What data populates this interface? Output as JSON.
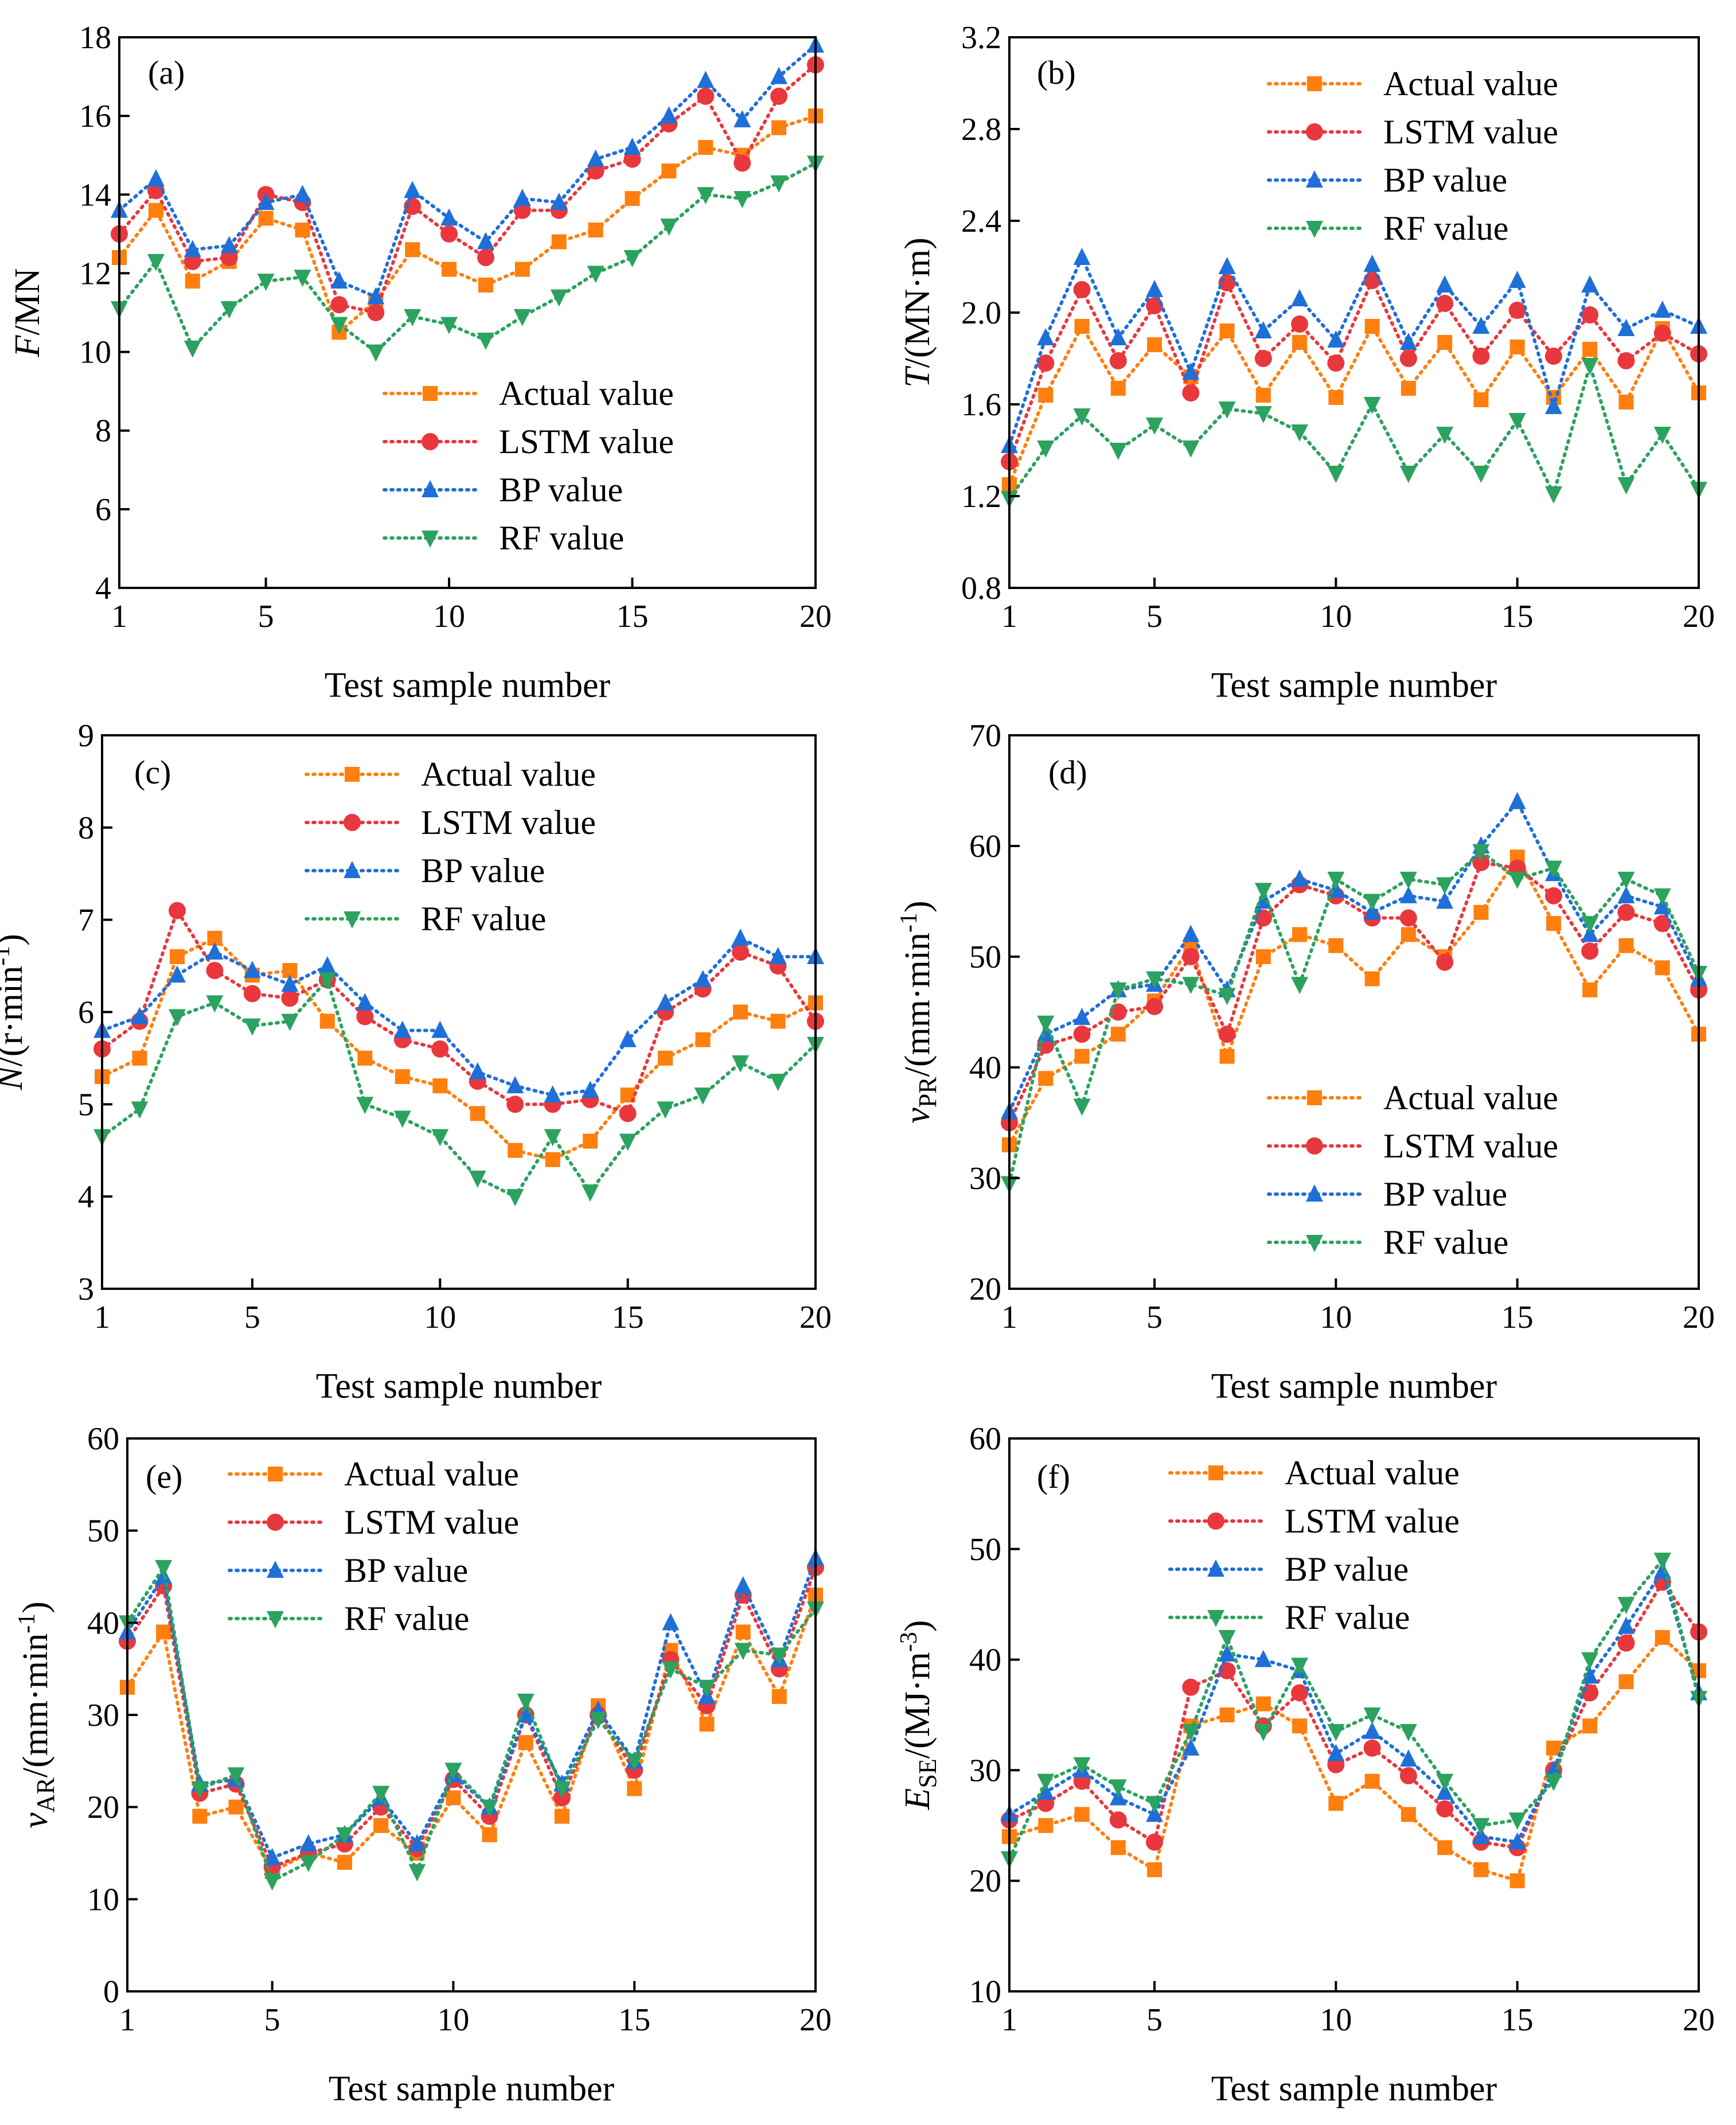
{
  "colors": {
    "Actual value": "#ff7f0e",
    "LSTM value": "#e8383d",
    "BP value": "#1f6fd8",
    "RF value": "#2ca25f"
  },
  "chart_data": [
    {
      "type": "line",
      "panel": "(a)",
      "xlabel": "Test sample number",
      "ylabel_italic": "F",
      "ylabel_unit": "/MN",
      "xlim": [
        1,
        20
      ],
      "ylim": [
        4,
        18
      ],
      "xticks": [
        1,
        5,
        10,
        15,
        20
      ],
      "yticks": [
        4,
        6,
        8,
        10,
        12,
        14,
        16,
        18
      ],
      "legend": "bottom-right",
      "x": [
        1,
        2,
        3,
        4,
        5,
        6,
        7,
        8,
        9,
        10,
        11,
        12,
        13,
        14,
        15,
        16,
        17,
        18,
        19,
        20
      ],
      "series": [
        {
          "name": "Actual value",
          "marker": "square",
          "values": [
            12.4,
            13.6,
            11.8,
            12.3,
            13.4,
            13.1,
            10.5,
            11.3,
            12.6,
            12.1,
            11.7,
            12.1,
            12.8,
            13.1,
            13.9,
            14.6,
            15.2,
            15.0,
            15.7,
            16.0
          ]
        },
        {
          "name": "LSTM value",
          "marker": "circle",
          "values": [
            13.0,
            14.1,
            12.3,
            12.4,
            14.0,
            13.8,
            11.2,
            11.0,
            13.7,
            13.0,
            12.4,
            13.6,
            13.6,
            14.6,
            14.9,
            15.8,
            16.5,
            14.8,
            16.5,
            17.3
          ]
        },
        {
          "name": "BP value",
          "marker": "triangle-up",
          "values": [
            13.6,
            14.4,
            12.6,
            12.7,
            13.8,
            14.0,
            11.8,
            11.4,
            14.1,
            13.4,
            12.8,
            13.9,
            13.8,
            14.9,
            15.2,
            16.0,
            16.9,
            15.9,
            17.0,
            17.8
          ]
        },
        {
          "name": "RF value",
          "marker": "triangle-down",
          "values": [
            11.1,
            12.3,
            10.1,
            11.1,
            11.8,
            11.9,
            10.7,
            10.0,
            10.9,
            10.7,
            10.3,
            10.9,
            11.4,
            12.0,
            12.4,
            13.2,
            14.0,
            13.9,
            14.3,
            14.8
          ]
        }
      ]
    },
    {
      "type": "line",
      "panel": "(b)",
      "xlabel": "Test sample number",
      "ylabel_italic": "T",
      "ylabel_unit": "/(MN·m)",
      "xlim": [
        1,
        20
      ],
      "ylim": [
        0.8,
        3.2
      ],
      "xticks": [
        1,
        5,
        10,
        15,
        20
      ],
      "yticks": [
        0.8,
        1.2,
        1.6,
        2.0,
        2.4,
        2.8,
        3.2
      ],
      "ytick_labels": [
        "0.8",
        "1.2",
        "1.6",
        "2.0",
        "2.4",
        "2.8",
        "3.2"
      ],
      "legend": "top-right",
      "x": [
        1,
        2,
        3,
        4,
        5,
        6,
        7,
        8,
        9,
        10,
        11,
        12,
        13,
        14,
        15,
        16,
        17,
        18,
        19,
        20
      ],
      "series": [
        {
          "name": "Actual value",
          "marker": "square",
          "values": [
            1.25,
            1.64,
            1.94,
            1.67,
            1.86,
            1.72,
            1.92,
            1.64,
            1.87,
            1.63,
            1.94,
            1.67,
            1.87,
            1.62,
            1.85,
            1.63,
            1.84,
            1.61,
            1.93,
            1.65
          ]
        },
        {
          "name": "LSTM value",
          "marker": "circle",
          "values": [
            1.35,
            1.78,
            2.1,
            1.79,
            2.03,
            1.65,
            2.13,
            1.8,
            1.95,
            1.78,
            2.14,
            1.8,
            2.04,
            1.81,
            2.01,
            1.81,
            1.99,
            1.79,
            1.91,
            1.82
          ]
        },
        {
          "name": "BP value",
          "marker": "triangle-up",
          "values": [
            1.42,
            1.89,
            2.24,
            1.89,
            2.1,
            1.74,
            2.2,
            1.92,
            2.06,
            1.88,
            2.21,
            1.87,
            2.12,
            1.94,
            2.14,
            1.59,
            2.12,
            1.93,
            2.01,
            1.94
          ]
        },
        {
          "name": "RF value",
          "marker": "triangle-down",
          "values": [
            1.19,
            1.41,
            1.55,
            1.4,
            1.51,
            1.41,
            1.58,
            1.56,
            1.48,
            1.3,
            1.6,
            1.3,
            1.47,
            1.3,
            1.53,
            1.21,
            1.77,
            1.25,
            1.47,
            1.23
          ]
        }
      ]
    },
    {
      "type": "line",
      "panel": "(c)",
      "xlabel": "Test sample number",
      "ylabel_italic": "N",
      "ylabel_unit": "/(r·min",
      "ylabel_sup": "-1",
      "ylabel_tail": ")",
      "xlim": [
        1,
        20
      ],
      "ylim": [
        3,
        9
      ],
      "xticks": [
        1,
        5,
        10,
        15,
        20
      ],
      "yticks": [
        3,
        4,
        5,
        6,
        7,
        8,
        9
      ],
      "legend": "top-right",
      "x": [
        1,
        2,
        3,
        4,
        5,
        6,
        7,
        8,
        9,
        10,
        11,
        12,
        13,
        14,
        15,
        16,
        17,
        18,
        19,
        20
      ],
      "series": [
        {
          "name": "Actual value",
          "marker": "square",
          "values": [
            5.3,
            5.5,
            6.6,
            6.8,
            6.4,
            6.45,
            5.9,
            5.5,
            5.3,
            5.2,
            4.9,
            4.5,
            4.4,
            4.6,
            5.1,
            5.5,
            5.7,
            6.0,
            5.9,
            6.1
          ]
        },
        {
          "name": "LSTM value",
          "marker": "circle",
          "values": [
            5.6,
            5.9,
            7.1,
            6.45,
            6.2,
            6.15,
            6.35,
            5.95,
            5.7,
            5.6,
            5.25,
            5.0,
            5.0,
            5.05,
            4.9,
            6.0,
            6.25,
            6.65,
            6.5,
            5.9
          ]
        },
        {
          "name": "BP value",
          "marker": "triangle-up",
          "values": [
            5.8,
            5.95,
            6.4,
            6.65,
            6.45,
            6.3,
            6.5,
            6.1,
            5.8,
            5.8,
            5.35,
            5.2,
            5.1,
            5.15,
            5.7,
            6.1,
            6.35,
            6.8,
            6.6,
            6.6
          ]
        },
        {
          "name": "RF value",
          "marker": "triangle-down",
          "values": [
            4.65,
            4.95,
            5.95,
            6.1,
            5.85,
            5.9,
            6.35,
            5.0,
            4.85,
            4.65,
            4.2,
            4.0,
            4.65,
            4.05,
            4.6,
            4.95,
            5.1,
            5.45,
            5.25,
            5.65
          ]
        }
      ]
    },
    {
      "type": "line",
      "panel": "(d)",
      "xlabel": "Test sample number",
      "ylabel_italic": "v",
      "ylabel_sub": "PR",
      "ylabel_unit": "/(mm·min",
      "ylabel_sup": "-1",
      "ylabel_tail": ")",
      "xlim": [
        1,
        20
      ],
      "ylim": [
        20,
        70
      ],
      "xticks": [
        1,
        5,
        10,
        15,
        20
      ],
      "yticks": [
        20,
        30,
        40,
        50,
        60,
        70
      ],
      "legend": "bottom-right",
      "x": [
        1,
        2,
        3,
        4,
        5,
        6,
        7,
        8,
        9,
        10,
        11,
        12,
        13,
        14,
        15,
        16,
        17,
        18,
        19,
        20
      ],
      "series": [
        {
          "name": "Actual value",
          "marker": "square",
          "values": [
            33,
            39,
            41,
            43,
            46,
            51,
            41,
            50,
            52,
            51,
            48,
            52,
            50,
            54,
            59,
            53,
            47,
            51,
            49,
            43
          ]
        },
        {
          "name": "LSTM value",
          "marker": "circle",
          "values": [
            35,
            42,
            43,
            45,
            45.5,
            50,
            43,
            53.5,
            56.5,
            55.5,
            53.5,
            53.5,
            49.5,
            58.5,
            58,
            55.5,
            50.5,
            54,
            53,
            47
          ]
        },
        {
          "name": "BP value",
          "marker": "triangle-up",
          "values": [
            36,
            43,
            44.5,
            47,
            47.5,
            52,
            47,
            55,
            57,
            56,
            54,
            55.5,
            55,
            60,
            64,
            57.5,
            52,
            55.5,
            54.5,
            48
          ]
        },
        {
          "name": "RF value",
          "marker": "triangle-down",
          "values": [
            29.5,
            44,
            36.5,
            47,
            48,
            47.5,
            46.5,
            56,
            47.5,
            57,
            55,
            57,
            56.5,
            59.5,
            57,
            58,
            53,
            57,
            55.5,
            48.5
          ]
        }
      ]
    },
    {
      "type": "line",
      "panel": "(e)",
      "xlabel": "Test sample number",
      "ylabel_italic": "v",
      "ylabel_sub": "AR",
      "ylabel_unit": "/(mm·min",
      "ylabel_sup": "-1",
      "ylabel_tail": ")",
      "xlim": [
        1,
        20
      ],
      "ylim": [
        0,
        60
      ],
      "xticks": [
        1,
        5,
        10,
        15,
        20
      ],
      "yticks": [
        0,
        10,
        20,
        30,
        40,
        50,
        60
      ],
      "legend": "top-right",
      "x": [
        1,
        2,
        3,
        4,
        5,
        6,
        7,
        8,
        9,
        10,
        11,
        12,
        13,
        14,
        15,
        16,
        17,
        18,
        19,
        20
      ],
      "series": [
        {
          "name": "Actual value",
          "marker": "square",
          "values": [
            33,
            39,
            19,
            20,
            13,
            15,
            14,
            18,
            15,
            21,
            17,
            27,
            19,
            31,
            22,
            37,
            29,
            39,
            32,
            43
          ]
        },
        {
          "name": "LSTM value",
          "marker": "circle",
          "values": [
            38,
            44,
            21.5,
            22.5,
            13.5,
            15,
            16,
            20,
            15.5,
            23,
            19,
            30,
            21,
            30,
            24,
            36,
            31,
            43,
            35,
            46
          ]
        },
        {
          "name": "BP value",
          "marker": "triangle-up",
          "values": [
            39,
            45,
            22.5,
            23,
            14.5,
            16,
            17,
            21,
            16,
            23.5,
            20,
            30,
            22.5,
            30.5,
            25,
            40,
            32,
            44,
            36,
            47
          ]
        },
        {
          "name": "RF value",
          "marker": "triangle-down",
          "values": [
            40,
            46,
            22,
            23.5,
            12,
            14,
            17,
            21.5,
            13,
            24,
            20,
            31.5,
            22,
            29.5,
            25,
            35,
            33,
            37,
            36.5,
            41.5
          ]
        }
      ]
    },
    {
      "type": "line",
      "panel": "(f)",
      "xlabel": "Test sample number",
      "ylabel_italic": "E",
      "ylabel_sub": "SE",
      "ylabel_unit": "/(MJ·m",
      "ylabel_sup": "-3",
      "ylabel_tail": ")",
      "xlim": [
        1,
        20
      ],
      "ylim": [
        10,
        60
      ],
      "xticks": [
        1,
        5,
        10,
        15,
        20
      ],
      "yticks": [
        10,
        20,
        30,
        40,
        50,
        60
      ],
      "legend": "top-right",
      "x": [
        1,
        2,
        3,
        4,
        5,
        6,
        7,
        8,
        9,
        10,
        11,
        12,
        13,
        14,
        15,
        16,
        17,
        18,
        19,
        20
      ],
      "series": [
        {
          "name": "Actual value",
          "marker": "square",
          "values": [
            24,
            25,
            26,
            23,
            21,
            34,
            35,
            36,
            34,
            27,
            29,
            26,
            23,
            21,
            20,
            32,
            34,
            38,
            42,
            39
          ]
        },
        {
          "name": "LSTM value",
          "marker": "circle",
          "values": [
            25.5,
            27,
            29,
            25.5,
            23.5,
            37.5,
            39,
            34,
            37,
            30.5,
            32,
            29.5,
            26.5,
            23.5,
            23,
            30,
            37,
            41.5,
            47,
            42.5
          ]
        },
        {
          "name": "BP value",
          "marker": "triangle-up",
          "values": [
            26,
            28,
            30,
            27.5,
            26,
            32,
            40.5,
            40,
            39,
            31.5,
            33.5,
            31,
            28,
            24,
            23.5,
            30,
            38.5,
            43,
            48,
            37
          ]
        },
        {
          "name": "RF value",
          "marker": "triangle-down",
          "values": [
            22,
            29,
            30.5,
            28.5,
            27,
            33.5,
            42,
            33.5,
            39.5,
            33.5,
            35,
            33.5,
            29,
            25,
            25.5,
            29,
            40,
            45,
            49,
            36.5
          ]
        }
      ]
    }
  ]
}
